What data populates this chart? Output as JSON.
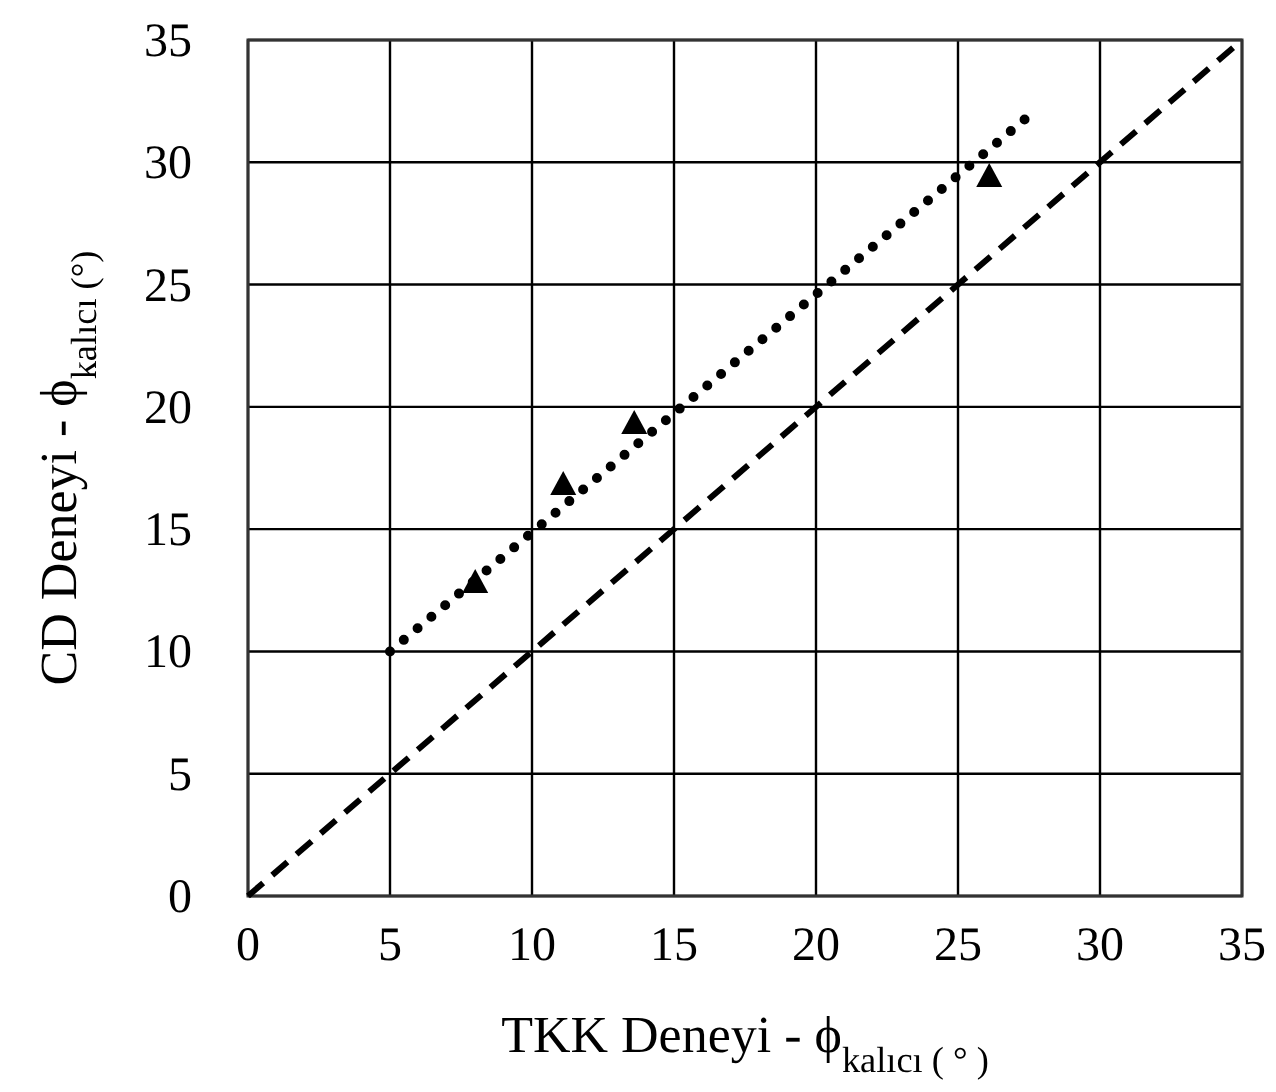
{
  "chart_data": {
    "type": "scatter",
    "xlabel": "TKK Deneyi - ϕ$_{kalıcı ( ° )}$",
    "ylabel": "CD Deneyi - ϕ$_{kalıcı (°)}$",
    "xlim": [
      0,
      35
    ],
    "ylim": [
      0,
      35
    ],
    "xticks": [
      0,
      5,
      10,
      15,
      20,
      25,
      30,
      35
    ],
    "yticks": [
      0,
      5,
      10,
      15,
      20,
      25,
      30,
      35
    ],
    "grid": true,
    "series": [
      {
        "color": "#000000",
        "marker": "triangle",
        "x": [
          8.0,
          11.1,
          13.6,
          26.1
        ],
        "values": [
          12.8,
          16.8,
          19.3,
          29.4
        ]
      },
      {
        "type": "line",
        "color": "#000000",
        "marker": "none",
        "line_style": "dotted",
        "x": [
          5,
          27.5
        ],
        "values": [
          10,
          31.9
        ]
      },
      {
        "type": "line",
        "color": "#000000",
        "marker": "none",
        "line_style": "dashed",
        "x": [
          0,
          35
        ],
        "values": [
          0,
          35
        ]
      }
    ]
  }
}
